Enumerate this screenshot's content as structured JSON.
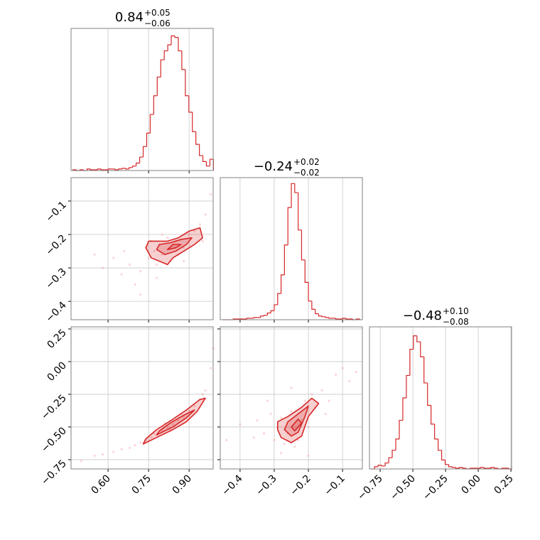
{
  "chart_data": [
    {
      "type": "histogram",
      "title": "0.84",
      "title_upper": "+0.05",
      "title_lower": "−0.06",
      "color": "#d62728",
      "bins": [
        0.47,
        0.483,
        0.496,
        0.509,
        0.522,
        0.535,
        0.548,
        0.561,
        0.574,
        0.587,
        0.6,
        0.613,
        0.626,
        0.639,
        0.652,
        0.665,
        0.678,
        0.691,
        0.704,
        0.717,
        0.73,
        0.743,
        0.756,
        0.769,
        0.782,
        0.795,
        0.808,
        0.821,
        0.834,
        0.847,
        0.86,
        0.873,
        0.886,
        0.899,
        0.912,
        0.925,
        0.938,
        0.951,
        0.964,
        0.977,
        0.99
      ],
      "counts": [
        1,
        0,
        1,
        0,
        2,
        1,
        1,
        2,
        1,
        1,
        2,
        2,
        1,
        2,
        3,
        2,
        4,
        6,
        10,
        18,
        32,
        50,
        75,
        100,
        125,
        148,
        160,
        168,
        180,
        178,
        160,
        135,
        100,
        78,
        52,
        35,
        20,
        12,
        6,
        15
      ],
      "xlim": [
        0.463,
        0.989
      ],
      "xticks": [
        0.6,
        0.75,
        0.9
      ],
      "ylim": [
        0,
        190
      ],
      "grid": true
    },
    {
      "type": "histogram",
      "title": "−0.24",
      "title_upper": "+0.02",
      "title_lower": "−0.02",
      "color": "#d62728",
      "bins": [
        -0.45,
        -0.44,
        -0.43,
        -0.42,
        -0.41,
        -0.4,
        -0.39,
        -0.38,
        -0.37,
        -0.36,
        -0.35,
        -0.34,
        -0.33,
        -0.32,
        -0.31,
        -0.3,
        -0.29,
        -0.28,
        -0.27,
        -0.26,
        -0.25,
        -0.24,
        -0.23,
        -0.22,
        -0.21,
        -0.2,
        -0.19,
        -0.18,
        -0.17,
        -0.16,
        -0.15,
        -0.14,
        -0.13,
        -0.12,
        -0.11,
        -0.1,
        -0.09,
        -0.08,
        -0.07,
        -0.06,
        -0.05
      ],
      "counts": [
        0,
        0,
        0,
        1,
        1,
        1,
        1,
        2,
        2,
        3,
        3,
        5,
        6,
        9,
        12,
        20,
        35,
        60,
        100,
        150,
        182,
        170,
        120,
        80,
        50,
        25,
        14,
        8,
        5,
        4,
        3,
        2,
        2,
        1,
        1,
        2,
        1,
        1,
        0,
        1
      ],
      "xlim": [
        -0.458,
        -0.042
      ],
      "xticks": [
        -0.4,
        -0.3,
        -0.2,
        -0.1
      ],
      "ylim": [
        0,
        190
      ],
      "grid": true
    },
    {
      "type": "histogram",
      "title": "−0.48",
      "title_upper": "+0.10",
      "title_lower": "−0.08",
      "color": "#d62728",
      "bins": [
        -0.82,
        -0.793,
        -0.766,
        -0.739,
        -0.712,
        -0.685,
        -0.658,
        -0.631,
        -0.604,
        -0.577,
        -0.55,
        -0.523,
        -0.496,
        -0.469,
        -0.442,
        -0.415,
        -0.388,
        -0.361,
        -0.334,
        -0.307,
        -0.28,
        -0.253,
        -0.226,
        -0.199,
        -0.172,
        -0.145,
        -0.118,
        -0.091,
        -0.064,
        -0.037,
        -0.01,
        0.017,
        0.044,
        0.071,
        0.098,
        0.125,
        0.152,
        0.179,
        0.206,
        0.233,
        0.26
      ],
      "counts": [
        0,
        3,
        5,
        4,
        8,
        15,
        25,
        40,
        65,
        95,
        125,
        160,
        178,
        170,
        150,
        115,
        85,
        60,
        40,
        25,
        12,
        6,
        3,
        2,
        1,
        2,
        1,
        0,
        1,
        1,
        1,
        2,
        1,
        1,
        2,
        1,
        0,
        1,
        1,
        0
      ],
      "xlim": [
        -0.832,
        0.255
      ],
      "xticks": [
        {
          "value": -0.75,
          "label": "−0.75"
        },
        {
          "value": -0.5,
          "label": "−0.50"
        },
        {
          "value": -0.25,
          "label": "−0.25"
        },
        {
          "value": 0,
          "label": "0.00"
        },
        {
          "value": 0.25,
          "label": "0.25"
        }
      ],
      "ylim": [
        0,
        190
      ],
      "grid": true
    },
    {
      "type": "scatter",
      "color": "#d62728",
      "point_color": "#f08a8e",
      "x": [
        0.55,
        0.58,
        0.62,
        0.65,
        0.66,
        0.68,
        0.7,
        0.72,
        0.72,
        0.74,
        0.75,
        0.76,
        0.77,
        0.78,
        0.78,
        0.79,
        0.8,
        0.8,
        0.82,
        0.83,
        0.85,
        0.86,
        0.88,
        0.88,
        0.9,
        0.92,
        0.94,
        0.95,
        0.96,
        0.98
      ],
      "y": [
        -0.26,
        -0.3,
        -0.27,
        -0.32,
        -0.25,
        -0.29,
        -0.35,
        -0.31,
        -0.38,
        -0.24,
        -0.27,
        -0.22,
        -0.25,
        -0.29,
        -0.33,
        -0.23,
        -0.26,
        -0.2,
        -0.21,
        -0.28,
        -0.22,
        -0.26,
        -0.24,
        -0.28,
        -0.2,
        -0.19,
        -0.17,
        -0.22,
        -0.14,
        -0.08
      ],
      "contours": [
        {
          "x": [
            0.74,
            0.76,
            0.79,
            0.82,
            0.84,
            0.88,
            0.92,
            0.95,
            0.94,
            0.9,
            0.86,
            0.82,
            0.78,
            0.75
          ],
          "y": [
            -0.24,
            -0.27,
            -0.28,
            -0.29,
            -0.27,
            -0.25,
            -0.23,
            -0.21,
            -0.18,
            -0.19,
            -0.21,
            -0.22,
            -0.22,
            -0.22
          ]
        },
        {
          "x": [
            0.78,
            0.81,
            0.85,
            0.89,
            0.91,
            0.87,
            0.83,
            0.79
          ],
          "y": [
            -0.245,
            -0.26,
            -0.25,
            -0.23,
            -0.21,
            -0.215,
            -0.225,
            -0.23
          ]
        },
        {
          "x": [
            0.82,
            0.85,
            0.87,
            0.84
          ],
          "y": [
            -0.245,
            -0.24,
            -0.23,
            -0.23
          ]
        }
      ],
      "xlim": [
        0.463,
        0.989
      ],
      "xticks": [
        0.6,
        0.75,
        0.9
      ],
      "ylim": [
        -0.455,
        -0.03
      ],
      "yticks": [
        {
          "value": -0.4,
          "label": "−0.4"
        },
        {
          "value": -0.3,
          "label": "−0.3"
        },
        {
          "value": -0.2,
          "label": "−0.2"
        },
        {
          "value": -0.1,
          "label": "−0.1"
        }
      ],
      "grid": true
    },
    {
      "type": "scatter",
      "color": "#d62728",
      "point_color": "#f08a8e",
      "x": [
        0.5,
        0.55,
        0.58,
        0.62,
        0.65,
        0.68,
        0.7,
        0.72,
        0.74,
        0.76,
        0.77,
        0.78,
        0.8,
        0.81,
        0.82,
        0.83,
        0.84,
        0.86,
        0.87,
        0.88,
        0.9,
        0.91,
        0.92,
        0.94,
        0.95,
        0.96,
        0.98,
        0.99
      ],
      "y": [
        -0.76,
        -0.72,
        -0.71,
        -0.69,
        -0.67,
        -0.66,
        -0.64,
        -0.62,
        -0.6,
        -0.58,
        -0.55,
        -0.56,
        -0.53,
        -0.47,
        -0.51,
        -0.52,
        -0.48,
        -0.45,
        -0.4,
        -0.42,
        -0.38,
        -0.39,
        -0.34,
        -0.29,
        -0.25,
        -0.22,
        -0.05,
        0.1
      ],
      "contours": [
        {
          "x": [
            0.73,
            0.78,
            0.84,
            0.89,
            0.93,
            0.96,
            0.94,
            0.89,
            0.84,
            0.78,
            0.74
          ],
          "y": [
            -0.63,
            -0.58,
            -0.52,
            -0.46,
            -0.38,
            -0.28,
            -0.29,
            -0.37,
            -0.44,
            -0.52,
            -0.59
          ]
        },
        {
          "x": [
            0.78,
            0.84,
            0.89,
            0.92,
            0.88,
            0.83,
            0.79
          ],
          "y": [
            -0.56,
            -0.5,
            -0.43,
            -0.37,
            -0.41,
            -0.47,
            -0.53
          ]
        }
      ],
      "xlim": [
        0.463,
        0.989
      ],
      "xticks": [
        {
          "value": 0.6,
          "label": "0.60"
        },
        {
          "value": 0.75,
          "label": "0.75"
        },
        {
          "value": 0.9,
          "label": "0.90"
        }
      ],
      "ylim": [
        -0.821,
        0.266
      ],
      "yticks": [
        {
          "value": -0.75,
          "label": "−0.75"
        },
        {
          "value": -0.5,
          "label": "−0.50"
        },
        {
          "value": -0.25,
          "label": "−0.25"
        },
        {
          "value": 0,
          "label": "0.00"
        },
        {
          "value": 0.25,
          "label": "0.25"
        }
      ],
      "grid": true
    },
    {
      "type": "scatter",
      "color": "#d62728",
      "point_color": "#f08a8e",
      "x": [
        -0.44,
        -0.4,
        -0.36,
        -0.35,
        -0.33,
        -0.32,
        -0.31,
        -0.3,
        -0.29,
        -0.28,
        -0.28,
        -0.27,
        -0.26,
        -0.25,
        -0.25,
        -0.24,
        -0.23,
        -0.22,
        -0.21,
        -0.2,
        -0.2,
        -0.19,
        -0.18,
        -0.16,
        -0.15,
        -0.14,
        -0.12,
        -0.1,
        -0.08,
        -0.06
      ],
      "y": [
        -0.6,
        -0.48,
        -0.58,
        -0.45,
        -0.55,
        -0.3,
        -0.4,
        -0.6,
        -0.5,
        -0.43,
        -0.7,
        -0.63,
        -0.55,
        -0.38,
        -0.2,
        -0.65,
        -0.6,
        -0.45,
        -0.3,
        -0.5,
        -0.72,
        -0.25,
        -0.35,
        -0.22,
        -0.4,
        -0.3,
        -0.1,
        -0.05,
        -0.15,
        -0.08
      ],
      "contours": [
        {
          "x": [
            -0.29,
            -0.28,
            -0.25,
            -0.22,
            -0.2,
            -0.17,
            -0.19,
            -0.22,
            -0.26,
            -0.29
          ],
          "y": [
            -0.52,
            -0.58,
            -0.62,
            -0.57,
            -0.42,
            -0.32,
            -0.28,
            -0.35,
            -0.42,
            -0.46
          ]
        },
        {
          "x": [
            -0.27,
            -0.25,
            -0.23,
            -0.21,
            -0.2,
            -0.23,
            -0.26
          ],
          "y": [
            -0.52,
            -0.57,
            -0.54,
            -0.42,
            -0.34,
            -0.4,
            -0.46
          ]
        },
        {
          "x": [
            -0.25,
            -0.24,
            -0.22,
            -0.23
          ],
          "y": [
            -0.5,
            -0.53,
            -0.47,
            -0.44
          ]
        }
      ],
      "xlim": [
        -0.458,
        -0.042
      ],
      "xticks": [
        {
          "value": -0.4,
          "label": "−0.4"
        },
        {
          "value": -0.3,
          "label": "−0.3"
        },
        {
          "value": -0.2,
          "label": "−0.2"
        },
        {
          "value": -0.1,
          "label": "−0.1"
        }
      ],
      "ylim": [
        -0.821,
        0.266
      ],
      "yticks": [
        -0.75,
        -0.5,
        -0.25,
        0,
        0.25
      ],
      "grid": true
    }
  ]
}
